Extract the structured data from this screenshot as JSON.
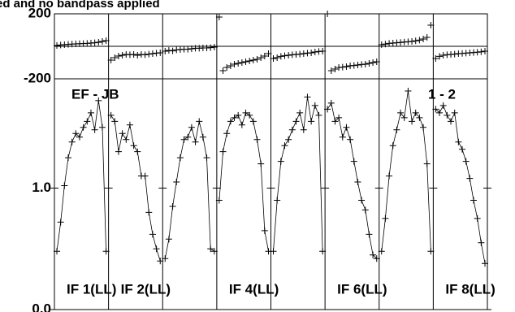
{
  "chart_data": {
    "type": "line",
    "title": "ed and no bandpass applied",
    "baseline_label": "EF - JB",
    "pol_label": "1 - 2",
    "phase_ylim": [
      -200,
      200
    ],
    "phase_yticks": [
      200,
      -200
    ],
    "amp_ylim": [
      0,
      1.9
    ],
    "amp_yticks": [
      {
        "value": 1,
        "label": "1.0"
      },
      {
        "value": 0,
        "label": "0.0"
      }
    ],
    "color": "#000000",
    "panels": [
      {
        "label": "IF 1(LL)",
        "phase": [
          5,
          8,
          10,
          12,
          14,
          15,
          16,
          17,
          18,
          20,
          22,
          25,
          30,
          35
        ],
        "amplitude": [
          0.48,
          0.72,
          1.02,
          1.25,
          1.38,
          1.45,
          1.42,
          1.5,
          1.55,
          1.62,
          1.48,
          1.72,
          1.5,
          0.48
        ]
      },
      {
        "label": "IF 2(LL)",
        "phase": [
          -85,
          -70,
          -60,
          -55,
          -50,
          -52,
          -50,
          -55,
          -50,
          -52,
          -48,
          -45,
          -42,
          -40
        ],
        "amplitude": [
          1.6,
          1.55,
          1.3,
          1.45,
          1.4,
          1.52,
          1.35,
          1.3,
          1.1,
          1.1,
          0.8,
          0.62,
          0.5,
          0.4
        ]
      },
      {
        "phase": [
          -30,
          -25,
          -28,
          -22,
          -20,
          -18,
          -18,
          -15,
          -12,
          -12,
          -10,
          -10,
          -8,
          -5
        ],
        "amplitude": [
          0.42,
          0.58,
          0.85,
          1.05,
          1.25,
          1.4,
          1.42,
          1.5,
          1.38,
          1.55,
          1.42,
          1.25,
          0.5,
          0.48
        ]
      },
      {
        "label": "IF 4(LL)",
        "phase": [
          180,
          -150,
          -130,
          -120,
          -110,
          -105,
          -100,
          -95,
          -90,
          -85,
          -80,
          -70,
          -60,
          -45
        ],
        "amplitude": [
          0.9,
          1.3,
          1.45,
          1.55,
          1.58,
          1.6,
          1.52,
          1.62,
          1.6,
          1.55,
          1.4,
          1.2,
          0.65,
          0.48
        ]
      },
      {
        "phase": [
          -75,
          -70,
          -62,
          -58,
          -55,
          -52,
          -50,
          -48,
          -45,
          -42,
          -40,
          -35,
          -32,
          -30
        ],
        "amplitude": [
          0.48,
          0.9,
          1.22,
          1.35,
          1.4,
          1.48,
          1.55,
          1.62,
          1.48,
          1.75,
          1.55,
          1.68,
          1.6,
          0.48
        ]
      },
      {
        "label": "IF 6(LL)",
        "phase": [
          200,
          -150,
          -140,
          -130,
          -128,
          -125,
          -120,
          -118,
          -115,
          -112,
          -110,
          -105,
          -100,
          -95
        ],
        "amplitude": [
          1.65,
          1.7,
          1.55,
          1.58,
          1.42,
          1.5,
          1.4,
          1.22,
          1.05,
          0.9,
          0.82,
          0.62,
          0.45,
          0.42
        ]
      },
      {
        "phase": [
          10,
          14,
          18,
          20,
          22,
          24,
          26,
          28,
          30,
          34,
          38,
          45,
          55,
          130
        ],
        "amplitude": [
          0.48,
          0.75,
          1.1,
          1.35,
          1.48,
          1.62,
          1.58,
          1.8,
          1.55,
          1.62,
          1.58,
          1.5,
          1.2,
          0.48
        ]
      },
      {
        "label": "IF 8(LL)",
        "phase": [
          -75,
          -62,
          -55,
          -52,
          -50,
          -48,
          -45,
          -44,
          -42,
          -40,
          -38,
          -36,
          -34,
          -30
        ],
        "amplitude": [
          1.65,
          1.62,
          1.68,
          1.6,
          1.55,
          1.62,
          1.38,
          1.32,
          1.22,
          1.08,
          0.9,
          0.75,
          0.55,
          0.38
        ]
      }
    ]
  }
}
